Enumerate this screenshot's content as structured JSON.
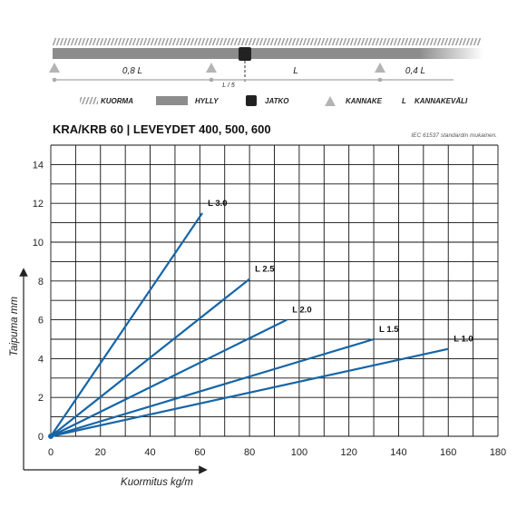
{
  "diagram": {
    "spans": [
      "0,8 L",
      "L",
      "0,4 L"
    ],
    "quarter_mark": "L / 5"
  },
  "legend": {
    "items": [
      {
        "label": "KUORMA",
        "icon": "load-hatch-icon"
      },
      {
        "label": "HYLLY",
        "icon": "shelf-bar-icon"
      },
      {
        "label": "JATKO",
        "icon": "joint-square-icon"
      },
      {
        "label": "KANNAKE",
        "icon": "bracket-triangle-icon"
      },
      {
        "label": "KANNAKEVÄLI",
        "symbol": "L",
        "icon": "span-letter-icon"
      }
    ]
  },
  "header": {
    "title": "KRA/KRB 60 | LEVEYDET 400, 500, 600",
    "standard_note": "IEC 61537 standardin mukainen."
  },
  "colors": {
    "series": "#1565a8",
    "grid": "#111111",
    "bar": "#8c8c8c",
    "support": "#b4b4b4"
  },
  "chart_data": {
    "type": "line",
    "xlabel": "Kuormitus kg/m",
    "ylabel": "Taipuma mm",
    "xlim": [
      0,
      180
    ],
    "ylim": [
      0,
      15
    ],
    "x_ticks": [
      0,
      20,
      40,
      60,
      80,
      100,
      120,
      140,
      160,
      180
    ],
    "y_ticks": [
      0,
      2,
      4,
      6,
      8,
      10,
      12,
      14
    ],
    "grid": true,
    "series": [
      {
        "name": "L 3.0",
        "points": [
          [
            0,
            0
          ],
          [
            61,
            11.5
          ]
        ]
      },
      {
        "name": "L 2.5",
        "points": [
          [
            0,
            0
          ],
          [
            80,
            8.1
          ]
        ]
      },
      {
        "name": "L 2.0",
        "points": [
          [
            0,
            0
          ],
          [
            95,
            6.0
          ]
        ]
      },
      {
        "name": "L 1.5",
        "points": [
          [
            0,
            0
          ],
          [
            130,
            5.0
          ]
        ]
      },
      {
        "name": "L 1.0",
        "points": [
          [
            0,
            0
          ],
          [
            160,
            4.5
          ]
        ]
      }
    ]
  }
}
